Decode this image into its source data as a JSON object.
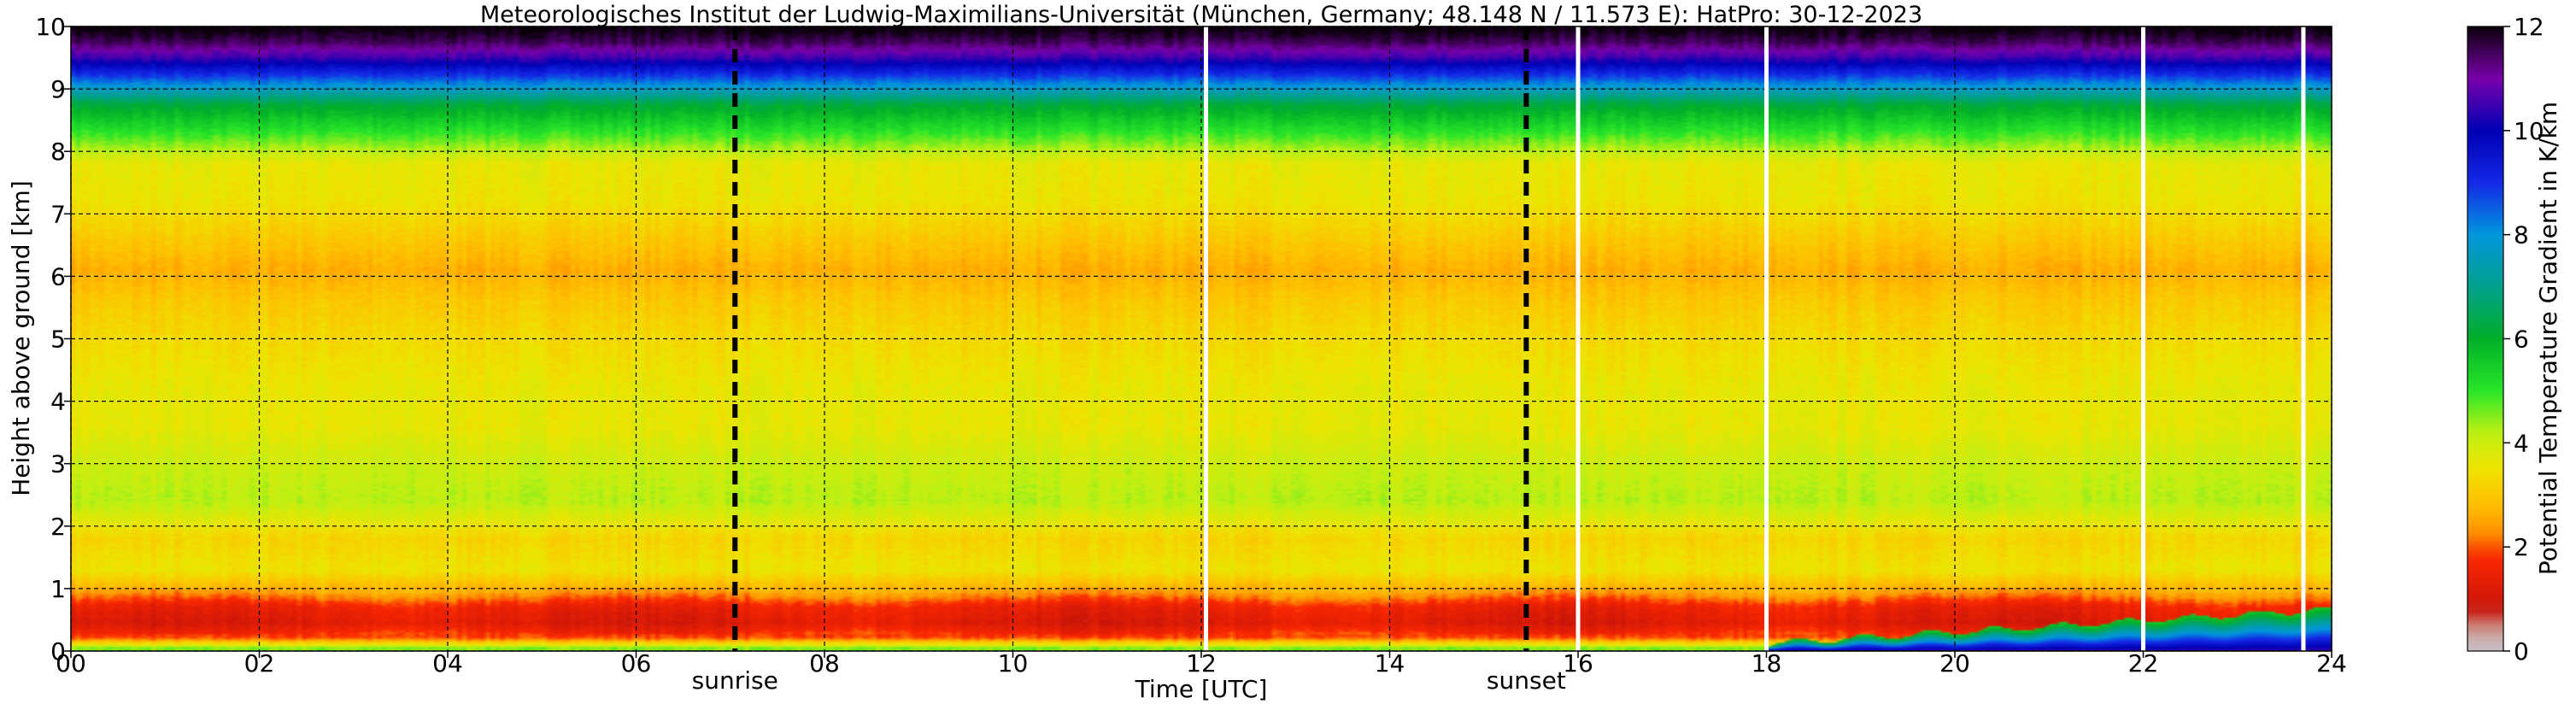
{
  "chart_data": {
    "type": "heatmap",
    "title": "Meteorologisches Institut der Ludwig-Maximilians-Universität (München, Germany; 48.148 N / 11.573 E):    HatPro: 30-12-2023",
    "xlabel": "Time [UTC]",
    "ylabel": "Height above ground [km]",
    "xlim": [
      0,
      24
    ],
    "ylim": [
      0,
      10
    ],
    "x_ticks": [
      "00",
      "02",
      "04",
      "06",
      "08",
      "10",
      "12",
      "14",
      "16",
      "18",
      "20",
      "22",
      "24"
    ],
    "y_ticks": [
      "0",
      "1",
      "2",
      "3",
      "4",
      "5",
      "6",
      "7",
      "8",
      "9",
      "10"
    ],
    "grid": true,
    "colorbar": {
      "label": "Potential Temperature Gradient in K/km",
      "range": [
        0,
        12
      ],
      "ticks": [
        "0",
        "2",
        "4",
        "6",
        "8",
        "10",
        "12"
      ]
    },
    "markers": [
      {
        "label": "sunrise",
        "x": 7.05
      },
      {
        "label": "sunset",
        "x": 15.45
      }
    ],
    "data_gaps_x": [
      12.05,
      16.0,
      18.0,
      22.0,
      23.7
    ],
    "profile_heights_km": [
      0.05,
      0.2,
      0.45,
      0.7,
      0.95,
      1.3,
      1.8,
      2.4,
      3.0,
      3.6,
      4.2,
      5.0,
      5.6,
      6.1,
      6.6,
      7.2,
      7.8,
      8.3,
      8.75,
      9.15,
      9.5,
      9.75,
      9.95
    ],
    "profile_values_K_per_km": [
      4.5,
      2.0,
      1.2,
      1.5,
      2.5,
      3.5,
      3.2,
      4.2,
      4.0,
      3.6,
      3.6,
      3.3,
      3.0,
      2.6,
      3.0,
      3.5,
      3.6,
      5.0,
      6.2,
      8.5,
      10.5,
      11.5,
      12.0
    ],
    "surface_layer": {
      "from_hour": 18,
      "to_hour": 24,
      "value_low": 10.5,
      "value_high": 5.5
    }
  }
}
